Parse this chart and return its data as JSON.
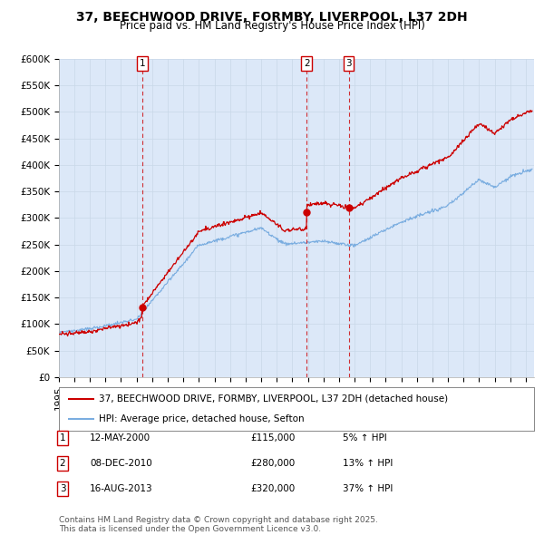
{
  "title": "37, BEECHWOOD DRIVE, FORMBY, LIVERPOOL, L37 2DH",
  "subtitle": "Price paid vs. HM Land Registry's House Price Index (HPI)",
  "ylabel_ticks": [
    "£0",
    "£50K",
    "£100K",
    "£150K",
    "£200K",
    "£250K",
    "£300K",
    "£350K",
    "£400K",
    "£450K",
    "£500K",
    "£550K",
    "£600K"
  ],
  "ylim": [
    0,
    600000
  ],
  "xlim_start": 1995.0,
  "xlim_end": 2025.5,
  "transactions": [
    {
      "num": 1,
      "date": "12-MAY-2000",
      "price": 115000,
      "year": 2000.36,
      "hpi_pct": "5% ↑ HPI"
    },
    {
      "num": 2,
      "date": "08-DEC-2010",
      "price": 280000,
      "year": 2010.93,
      "hpi_pct": "13% ↑ HPI"
    },
    {
      "num": 3,
      "date": "16-AUG-2013",
      "price": 320000,
      "year": 2013.62,
      "hpi_pct": "37% ↑ HPI"
    }
  ],
  "red_line_color": "#cc0000",
  "blue_line_color": "#7aade0",
  "grid_color": "#c8d8e8",
  "plot_bg_color": "#dce8f8",
  "legend_label_red": "37, BEECHWOOD DRIVE, FORMBY, LIVERPOOL, L37 2DH (detached house)",
  "legend_label_blue": "HPI: Average price, detached house, Sefton",
  "footer": "Contains HM Land Registry data © Crown copyright and database right 2025.\nThis data is licensed under the Open Government Licence v3.0.",
  "title_fontsize": 10,
  "subtitle_fontsize": 8.5,
  "tick_label_fontsize": 7.5,
  "legend_fontsize": 7.5,
  "footer_fontsize": 6.5
}
